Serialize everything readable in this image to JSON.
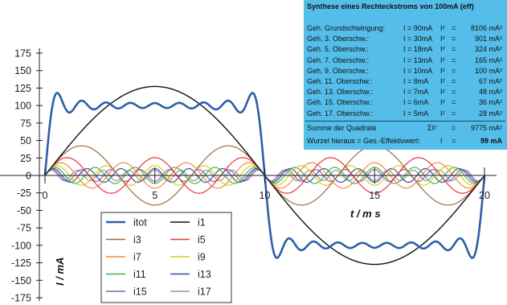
{
  "chart_data": {
    "type": "line",
    "xlabel": "t / m s",
    "ylabel": "I / mA",
    "xlim": [
      0,
      20
    ],
    "ylim": [
      -175,
      175
    ],
    "xticks": [
      0,
      5,
      10,
      15,
      20
    ],
    "yticks": [
      175,
      150,
      125,
      100,
      75,
      50,
      25,
      0,
      -25,
      -50,
      -75,
      -100,
      -125,
      -150,
      -175
    ],
    "period_ms": 20,
    "legend_position": "bottom-left",
    "series": [
      {
        "name": "itot",
        "color": "#2e5fa8",
        "harmonics": [
          1,
          3,
          5,
          7,
          9,
          11,
          13,
          15,
          17
        ],
        "amplitudes_mA": [
          127.3,
          42.4,
          25.5,
          18.2,
          14.1,
          11.6,
          9.8,
          8.5,
          7.5
        ]
      },
      {
        "name": "i1",
        "color": "#111111",
        "harmonic": 1,
        "amplitude_mA": 127.3
      },
      {
        "name": "i3",
        "color": "#9a6b3f",
        "harmonic": 3,
        "amplitude_mA": 42.4
      },
      {
        "name": "i5",
        "color": "#e8343a",
        "harmonic": 5,
        "amplitude_mA": 25.5
      },
      {
        "name": "i7",
        "color": "#f28a3a",
        "harmonic": 7,
        "amplitude_mA": 18.2
      },
      {
        "name": "i9",
        "color": "#d8cc1a",
        "harmonic": 9,
        "amplitude_mA": 14.1
      },
      {
        "name": "i11",
        "color": "#3cb44a",
        "harmonic": 11,
        "amplitude_mA": 11.6
      },
      {
        "name": "i13",
        "color": "#3a4fa8",
        "harmonic": 13,
        "amplitude_mA": 9.8
      },
      {
        "name": "i15",
        "color": "#8e5bb8",
        "harmonic": 15,
        "amplitude_mA": 8.5
      },
      {
        "name": "i17",
        "color": "#999999",
        "harmonic": 17,
        "amplitude_mA": 7.5
      }
    ]
  },
  "table": {
    "title": "Synthese eines Rechteckstroms von 100mA (eff)",
    "rows": [
      {
        "label": "Geh. Grundschwingung:",
        "i": "I = 90mA",
        "sq": "I²",
        "eq": "=",
        "val": "8106 mA²"
      },
      {
        "label": "Geh.  3.  Oberschw.:",
        "i": "I = 30mA",
        "sq": "I²",
        "eq": "=",
        "val": "901 mA²"
      },
      {
        "label": "Geh.  5.  Oberschw.:",
        "i": "I = 18mA",
        "sq": "I²",
        "eq": "=",
        "val": "324 mA²"
      },
      {
        "label": "Geh.  7.  Oberschw.:",
        "i": "I = 13mA",
        "sq": "I²",
        "eq": "=",
        "val": "165 mA²"
      },
      {
        "label": "Geh.  9.  Oberschw.:",
        "i": "I = 10mA",
        "sq": "I²",
        "eq": "=",
        "val": "100 mA²"
      },
      {
        "label": "Geh. 11.  Oberschw.:",
        "i": "I =   8mA",
        "sq": "I²",
        "eq": "=",
        "val": "67 mA²"
      },
      {
        "label": "Geh. 13.  Oberschw.:",
        "i": "I =   7mA",
        "sq": "I²",
        "eq": "=",
        "val": "48 mA²"
      },
      {
        "label": "Geh. 15.  Oberschw.:",
        "i": "I =   6mA",
        "sq": "I²",
        "eq": "=",
        "val": "36 mA²"
      },
      {
        "label": "Geh. 17.  Oberschw.:",
        "i": "I =   5mA",
        "sq": "I²",
        "eq": "=",
        "val": "28 mA²"
      }
    ],
    "sum_label": "Summe der Quadrate",
    "sum_sym": "ΣI²",
    "sum_eq": "=",
    "sum_val": "9775 mA²",
    "root_label": "Wurzel hieraus = Ges.-Effektivwert:",
    "root_sym": "I",
    "root_eq": "=",
    "root_val": "99 mA"
  }
}
